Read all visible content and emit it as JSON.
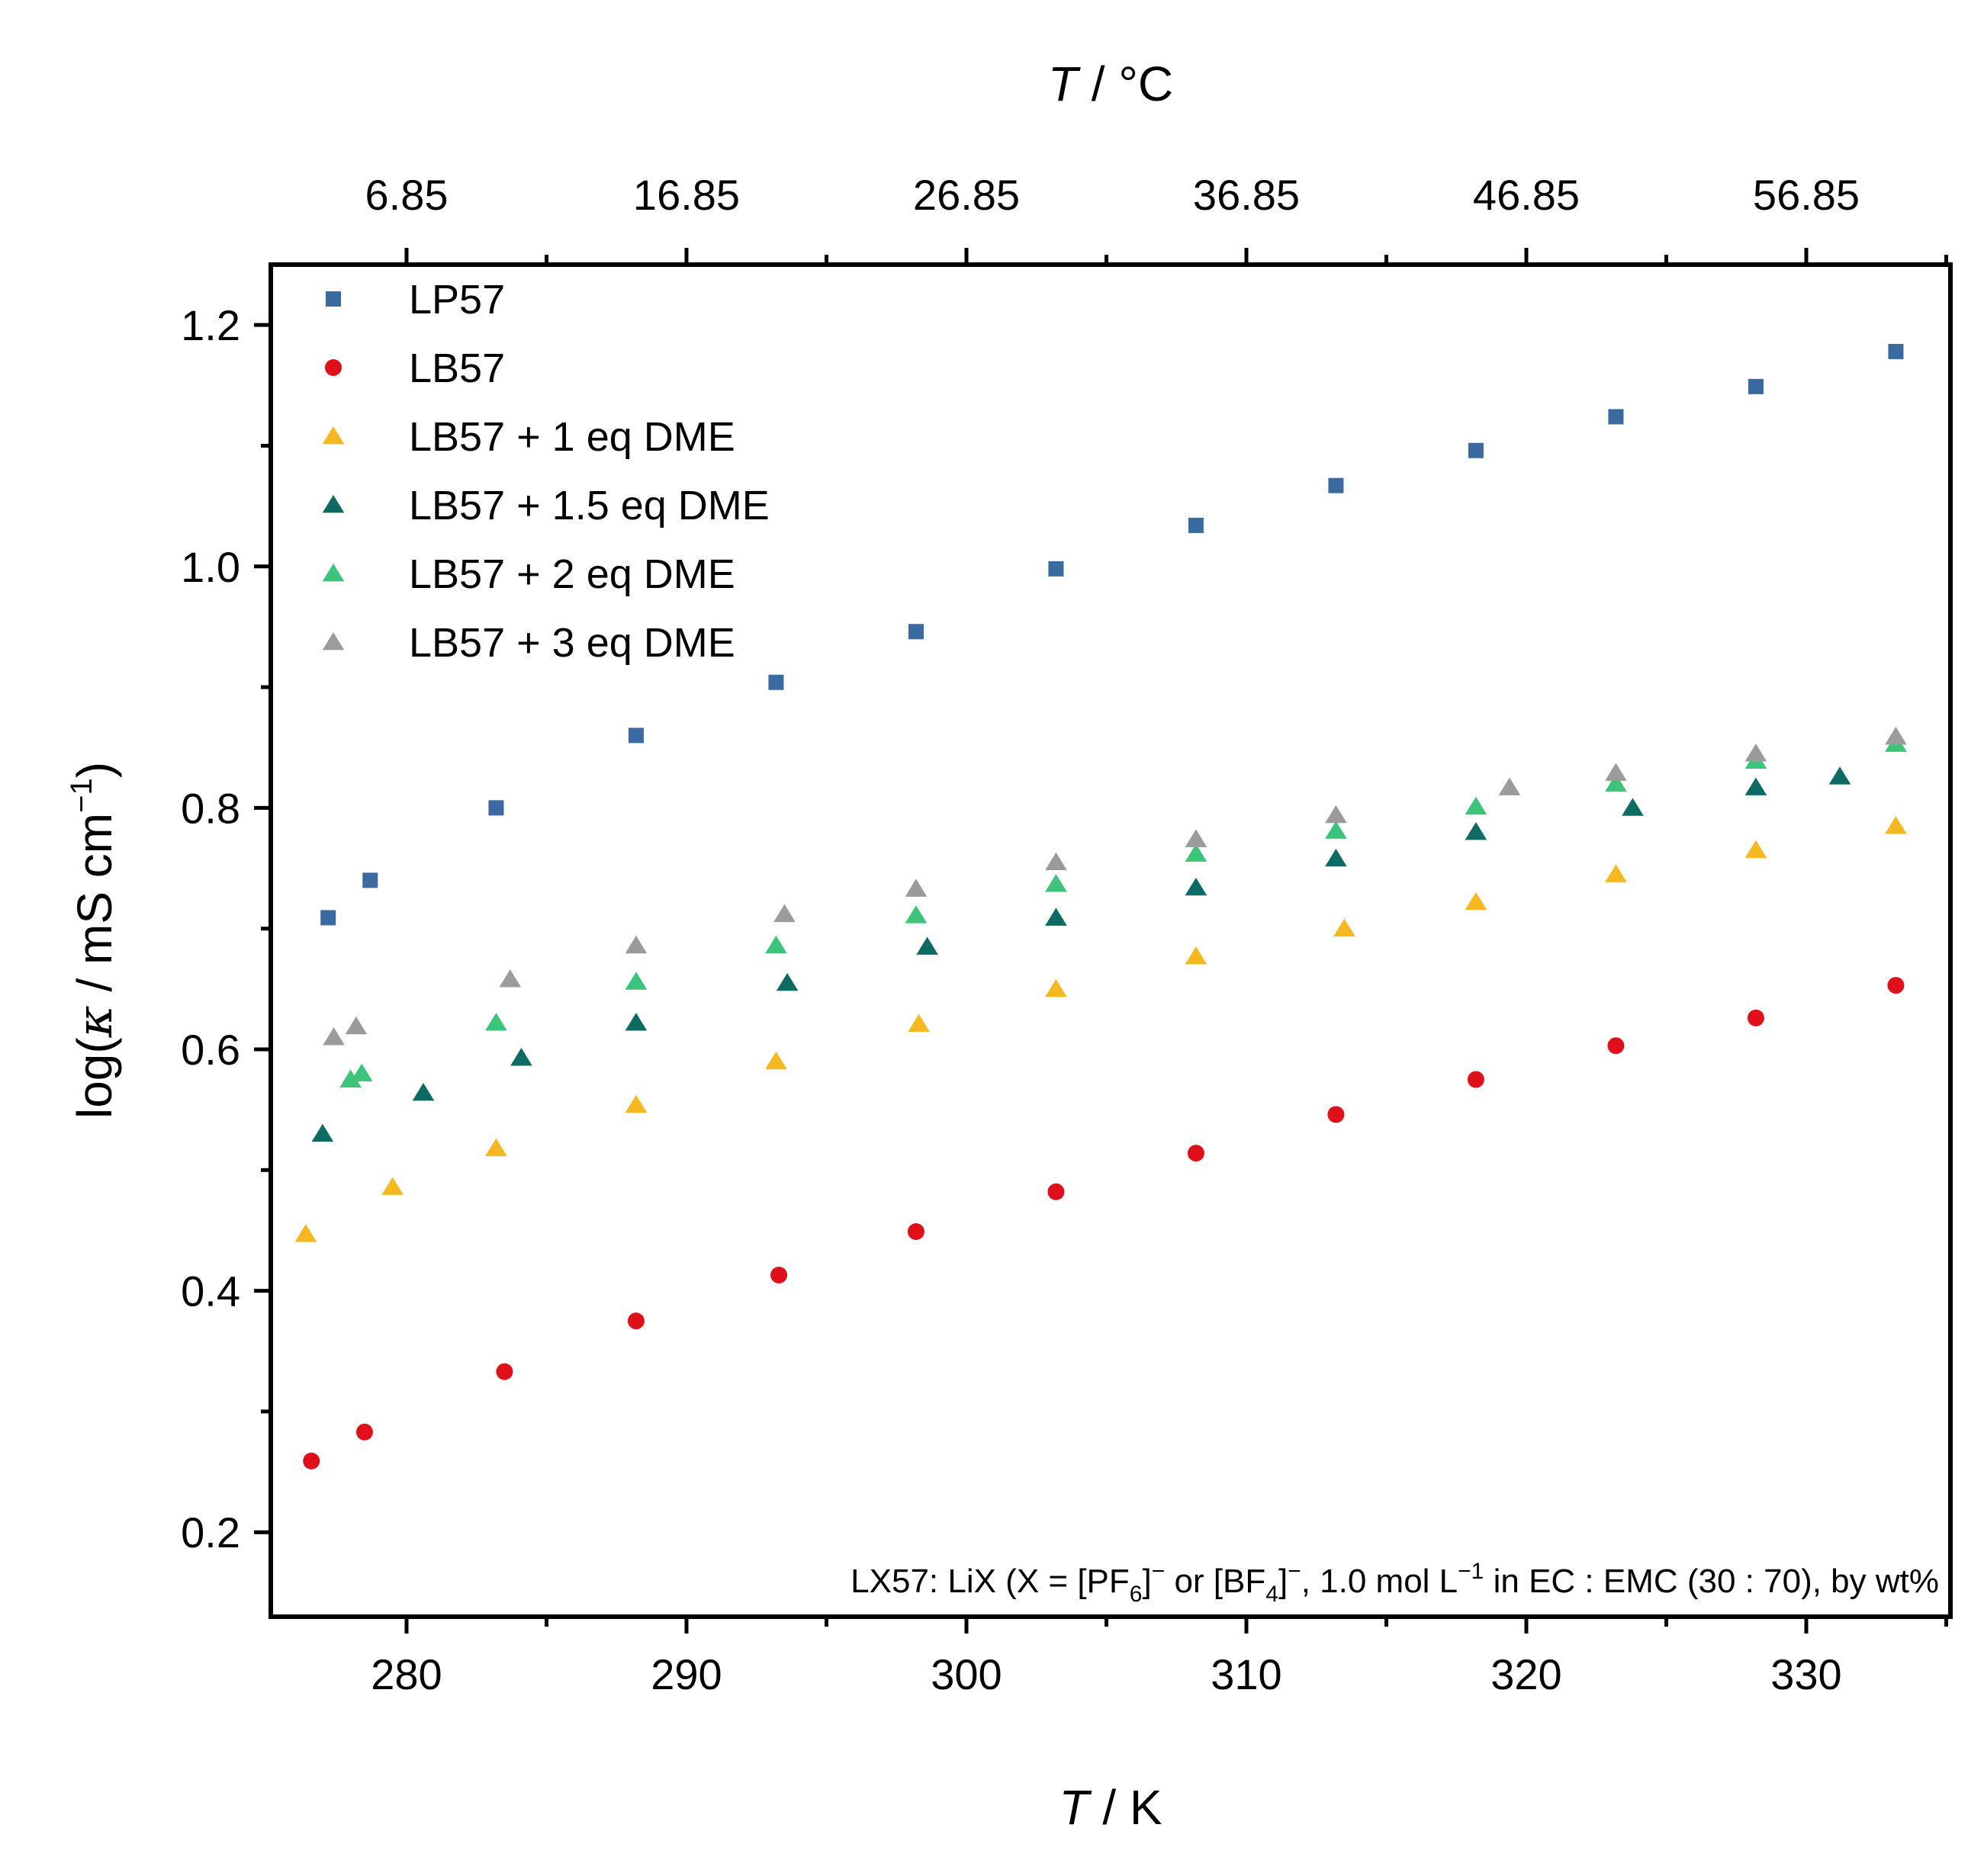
{
  "chart_data": {
    "type": "scatter",
    "xlabel": {
      "italic": "T",
      "rest": " / K"
    },
    "x2label": {
      "italic": "T",
      "rest": " / °C"
    },
    "ylabel": {
      "pre": "log(",
      "italic": "κ",
      "mid": " / mS cm",
      "sup": "−1",
      "post": ")"
    },
    "xlim": [
      275.15,
      335.15
    ],
    "ylim": [
      0.13,
      1.25
    ],
    "xticks": [
      280,
      290,
      300,
      310,
      320,
      330
    ],
    "xtick_labels": [
      "280",
      "290",
      "300",
      "310",
      "320",
      "330"
    ],
    "x2ticks": [
      280,
      290,
      300,
      310,
      320,
      330
    ],
    "x2tick_labels": [
      "6.85",
      "16.85",
      "26.85",
      "36.85",
      "46.85",
      "56.85"
    ],
    "yticks": [
      0.2,
      0.4,
      0.6,
      0.8,
      1.0,
      1.2
    ],
    "ytick_labels": [
      "0.2",
      "0.4",
      "0.6",
      "0.8",
      "1.0",
      "1.2"
    ],
    "annotation": {
      "p1": "LX57: LiX (X = [PF",
      "s1": "6",
      "p2": "]",
      "u1": "−",
      "p3": " or [BF",
      "s2": "4",
      "p4": "]",
      "u2": "−",
      "p5": ", 1.0 mol L",
      "u3": "−1",
      "p6": " in EC : EMC (30 : 70), by wt%"
    },
    "series": [
      {
        "name": "LP57",
        "color": "#3a6aa0",
        "marker": "square",
        "x": [
          277.2,
          278.7,
          283.2,
          288.2,
          293.2,
          298.2,
          303.2,
          308.2,
          313.2,
          318.2,
          323.2,
          328.2,
          333.2
        ],
        "y": [
          0.709,
          0.74,
          0.8,
          0.86,
          0.904,
          0.946,
          0.998,
          1.034,
          1.067,
          1.096,
          1.124,
          1.149,
          1.178
        ]
      },
      {
        "name": "LB57",
        "color": "#e0101a",
        "marker": "circle",
        "x": [
          276.6,
          278.5,
          283.5,
          288.2,
          293.3,
          298.2,
          303.2,
          308.2,
          313.2,
          318.2,
          323.2,
          328.2,
          333.2
        ],
        "y": [
          0.259,
          0.283,
          0.333,
          0.375,
          0.413,
          0.449,
          0.482,
          0.514,
          0.546,
          0.575,
          0.603,
          0.626,
          0.653
        ]
      },
      {
        "name": "LB57 + 1 eq DME",
        "color": "#f5b820",
        "marker": "triangle",
        "x": [
          276.4,
          279.5,
          283.2,
          288.2,
          293.2,
          298.3,
          303.2,
          308.2,
          313.5,
          318.2,
          323.2,
          328.2,
          333.2
        ],
        "y": [
          0.447,
          0.486,
          0.518,
          0.554,
          0.59,
          0.621,
          0.65,
          0.677,
          0.7,
          0.722,
          0.745,
          0.765,
          0.785
        ]
      },
      {
        "name": "LB57 + 1.5 eq DME",
        "color": "#0e6b63",
        "marker": "triangle",
        "x": [
          277.0,
          280.6,
          284.1,
          288.2,
          293.6,
          298.6,
          303.2,
          308.2,
          313.2,
          318.2,
          323.8,
          328.2,
          331.2
        ],
        "y": [
          0.53,
          0.564,
          0.593,
          0.622,
          0.655,
          0.685,
          0.709,
          0.734,
          0.758,
          0.78,
          0.8,
          0.817,
          0.826
        ]
      },
      {
        "name": "LB57 + 2 eq DME",
        "color": "#3cc47a",
        "marker": "triangle",
        "x": [
          278.0,
          278.4,
          283.2,
          288.2,
          293.2,
          298.2,
          303.2,
          308.2,
          313.2,
          318.2,
          323.2,
          328.2,
          333.2
        ],
        "y": [
          0.575,
          0.58,
          0.622,
          0.656,
          0.686,
          0.711,
          0.737,
          0.762,
          0.781,
          0.801,
          0.82,
          0.839,
          0.853
        ]
      },
      {
        "name": "LB57 + 3 eq DME",
        "color": "#9b9b9b",
        "marker": "triangle",
        "x": [
          277.4,
          278.2,
          283.7,
          288.2,
          293.5,
          298.2,
          303.2,
          308.2,
          313.2,
          319.4,
          323.2,
          328.2,
          333.2
        ],
        "y": [
          0.61,
          0.619,
          0.658,
          0.686,
          0.712,
          0.733,
          0.755,
          0.774,
          0.794,
          0.817,
          0.829,
          0.845,
          0.859
        ]
      }
    ]
  }
}
